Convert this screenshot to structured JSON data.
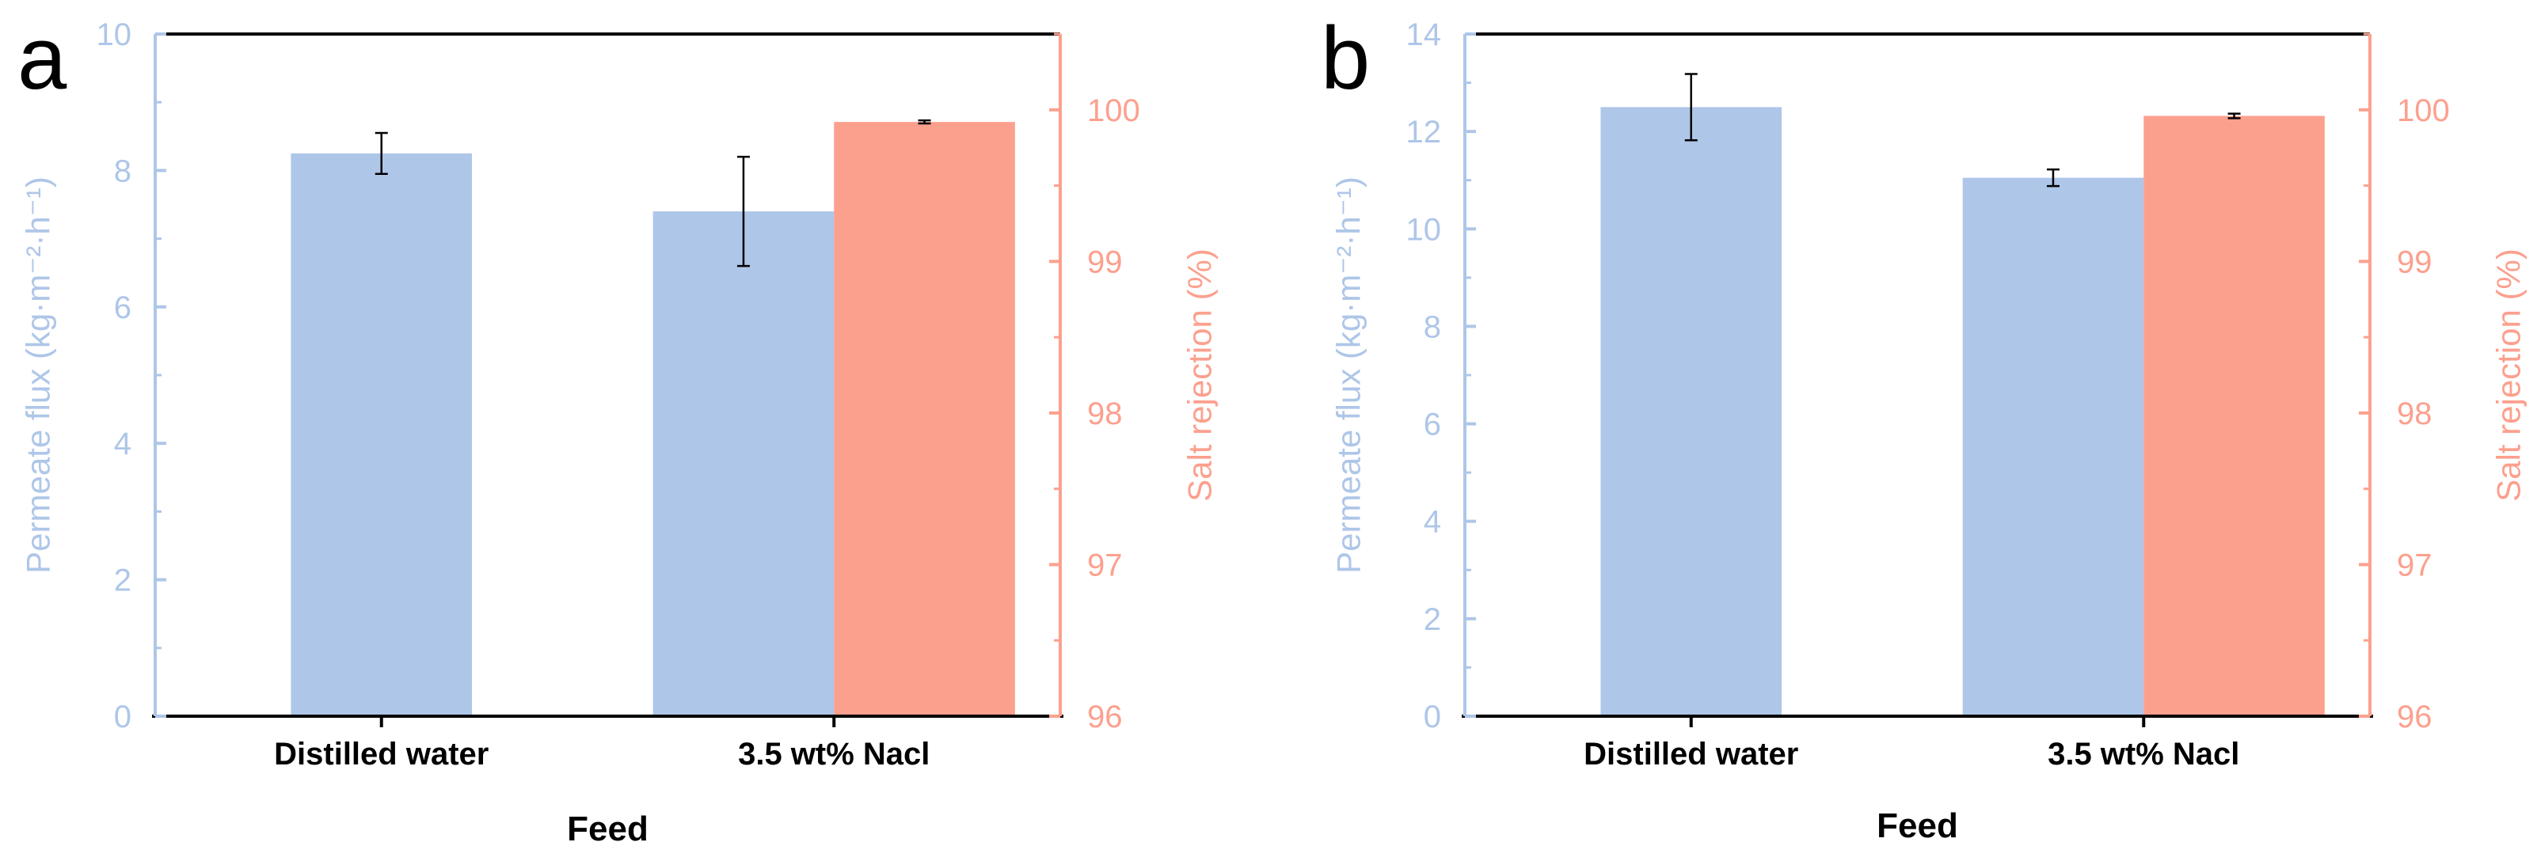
{
  "colors": {
    "flux": "#aec6e8",
    "flux_axis": "#aec6e8",
    "rejection": "#fca08e",
    "rejection_axis": "#fca08e",
    "axis": "#000000",
    "errorbar": "#000000"
  },
  "chart_data": [
    {
      "panel_label": "a",
      "type": "bar",
      "xlabel": "Feed",
      "categories": [
        "Distilled water",
        "3.5 wt% Nacl"
      ],
      "left_axis": {
        "label": "Permeate flux (kg·m⁻²·h⁻¹)",
        "ylim": [
          0,
          10
        ],
        "ticks": [
          0,
          2,
          4,
          6,
          8,
          10
        ]
      },
      "right_axis": {
        "label": "Salt rejection (%)",
        "ylim": [
          96,
          100.5
        ],
        "ticks": [
          96,
          97,
          98,
          99,
          100
        ]
      },
      "series": [
        {
          "name": "Permeate flux",
          "axis": "left",
          "values": [
            8.25,
            7.4
          ],
          "errors": [
            0.3,
            0.8
          ]
        },
        {
          "name": "Salt rejection",
          "axis": "right",
          "values": [
            null,
            99.92
          ],
          "errors": [
            null,
            0.01
          ]
        }
      ]
    },
    {
      "panel_label": "b",
      "type": "bar",
      "xlabel": "Feed",
      "categories": [
        "Distilled water",
        "3.5 wt% Nacl"
      ],
      "left_axis": {
        "label": "Permeate flux (kg·m⁻²·h⁻¹)",
        "ylim": [
          0,
          14
        ],
        "ticks": [
          0,
          2,
          4,
          6,
          8,
          10,
          12,
          14
        ]
      },
      "right_axis": {
        "label": "Salt rejection (%)",
        "ylim": [
          96,
          100.5
        ],
        "ticks": [
          96,
          97,
          98,
          99,
          100
        ]
      },
      "series": [
        {
          "name": "Permeate flux",
          "axis": "left",
          "values": [
            12.5,
            11.05
          ],
          "errors": [
            0.68,
            0.17
          ]
        },
        {
          "name": "Salt rejection",
          "axis": "right",
          "values": [
            null,
            99.96
          ],
          "errors": [
            null,
            0.015
          ]
        }
      ]
    }
  ]
}
